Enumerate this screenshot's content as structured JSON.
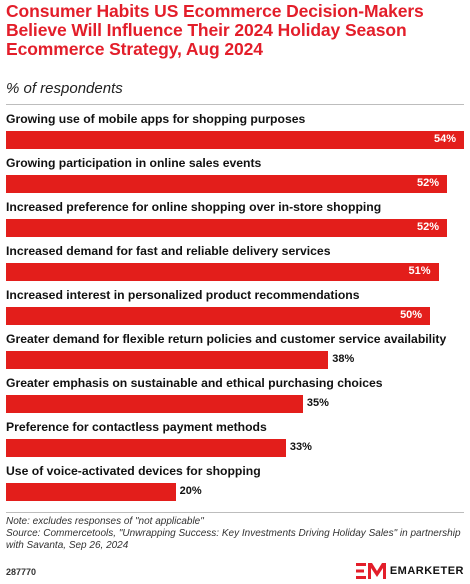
{
  "header": {
    "title": "Consumer Habits US Ecommerce Decision-Makers Believe Will Influence Their 2024 Holiday Season Ecommerce Strategy, Aug 2024",
    "subtitle": "% of respondents"
  },
  "chart_data": {
    "type": "bar",
    "orientation": "horizontal",
    "categories": [
      "Growing use of mobile apps for shopping purposes",
      "Growing participation in online sales events",
      "Increased preference for online shopping over in-store shopping",
      "Increased demand for fast and reliable delivery services",
      "Increased interest in personalized product recommendations",
      "Greater demand for flexible return policies and customer service availability",
      "Greater emphasis on sustainable and ethical purchasing choices",
      "Preference for contactless payment methods",
      "Use of voice-activated devices for shopping"
    ],
    "values": [
      54,
      52,
      52,
      51,
      50,
      38,
      35,
      33,
      20
    ],
    "value_labels": [
      "54%",
      "52%",
      "52%",
      "51%",
      "50%",
      "38%",
      "35%",
      "33%",
      "20%"
    ],
    "xlim": [
      0,
      54
    ],
    "bar_color": "#e31e1b",
    "grid": false
  },
  "footer": {
    "note": "Note: excludes responses of \"not applicable\"",
    "source": "Source: Commercetools, \"Unwrapping Success: Key Investments Driving Holiday Sales\" in partnership with Savanta, Sep 26, 2024",
    "chart_id": "287770",
    "brand": "EMARKETER"
  },
  "colors": {
    "title": "#e31e2a",
    "bar": "#e31e1b"
  }
}
